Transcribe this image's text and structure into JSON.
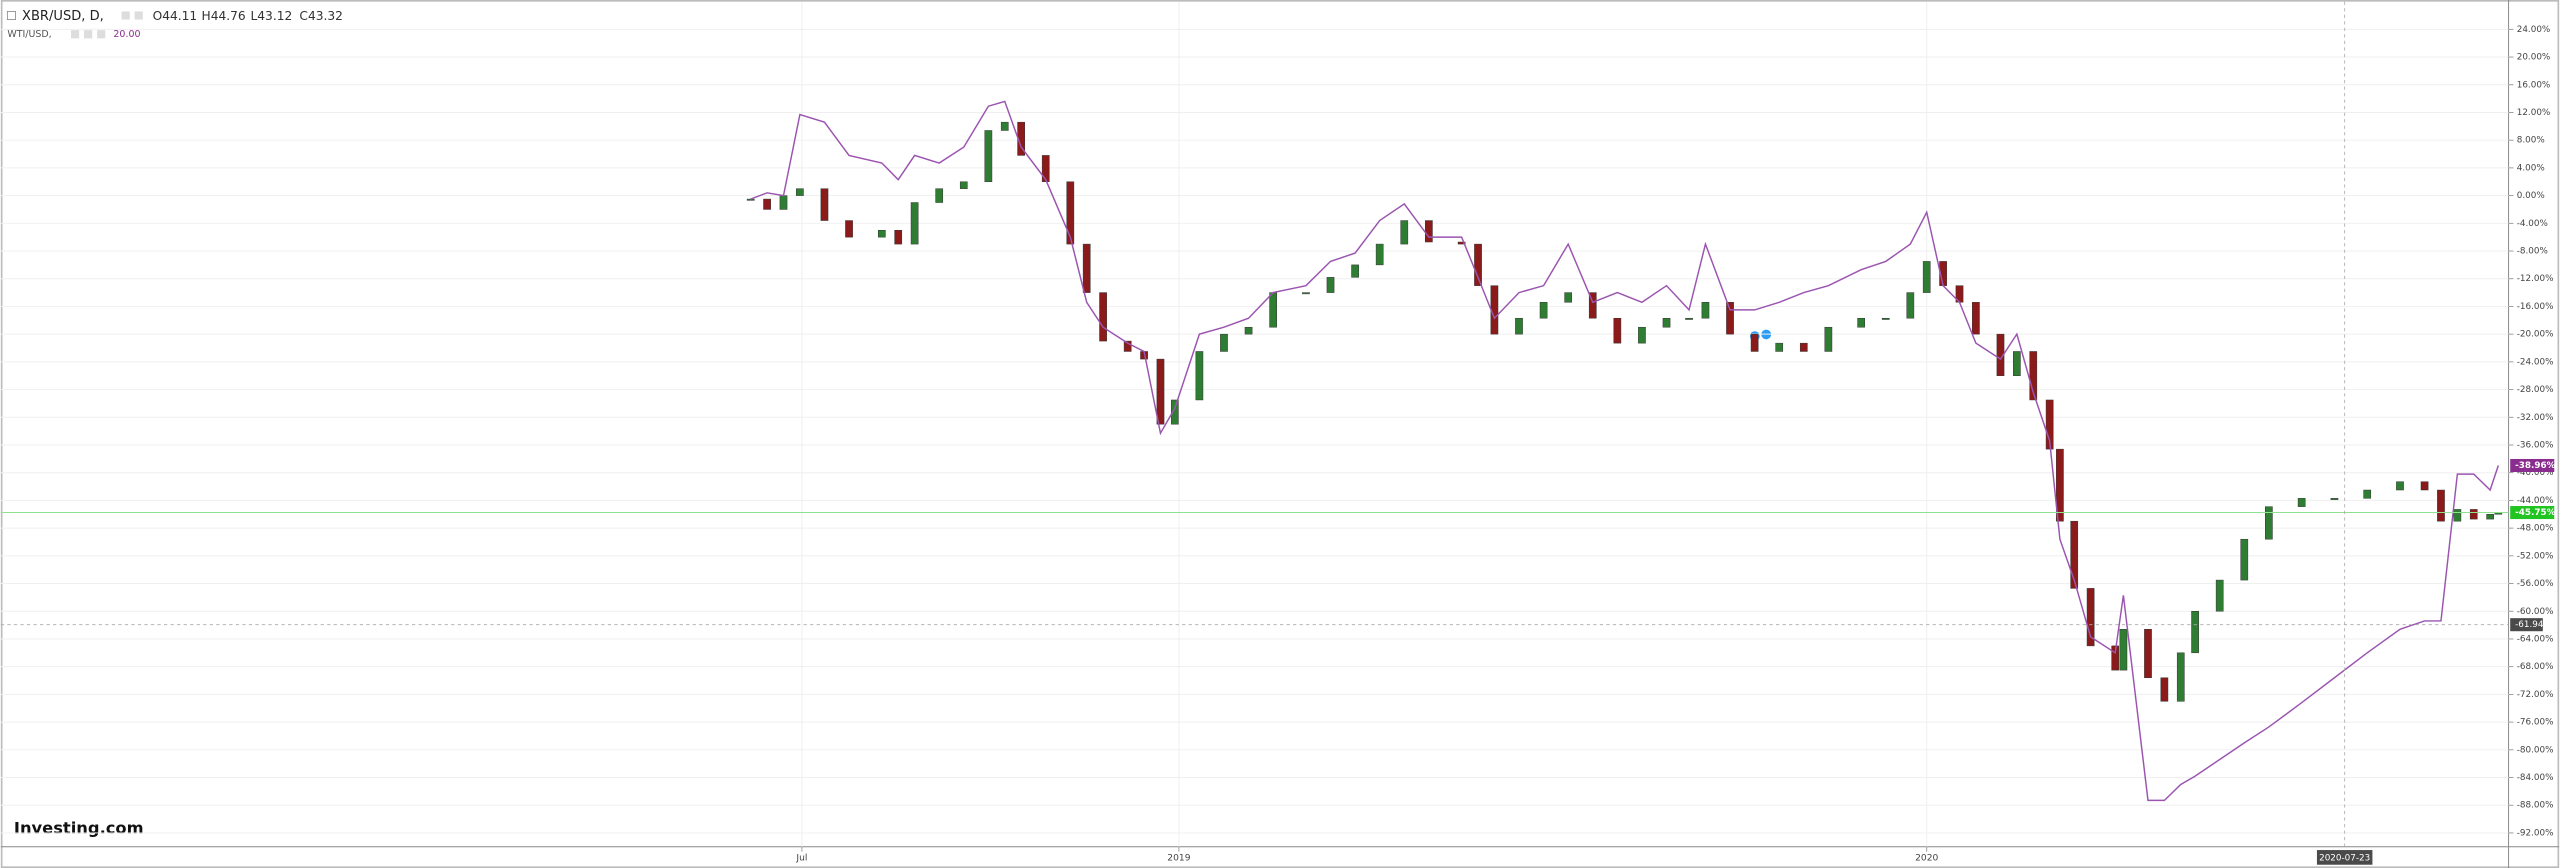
{
  "chart_data": {
    "type": "candlestick",
    "header": {
      "symbol": "XBR/USD, D,",
      "ohlc": [
        "O44.11",
        "H44.76",
        "L43.12",
        "C43.32"
      ],
      "compare_symbol": "WTI/USD,",
      "compare_value": "20.00"
    },
    "brand": "Investing.com",
    "x": [
      "2018-06-06",
      "2018-06-14",
      "2018-06-22",
      "2018-06-30",
      "2018-07-12",
      "2018-07-24",
      "2018-08-09",
      "2018-08-17",
      "2018-08-25",
      "2018-09-06",
      "2018-09-18",
      "2018-09-30",
      "2018-10-08",
      "2018-10-16",
      "2018-10-28",
      "2018-11-09",
      "2018-11-17",
      "2018-11-25",
      "2018-12-07",
      "2018-12-15",
      "2018-12-23",
      "2018-12-30",
      "2019-01-11",
      "2019-01-23",
      "2019-02-04",
      "2019-02-16",
      "2019-03-04",
      "2019-03-16",
      "2019-03-28",
      "2019-04-09",
      "2019-04-21",
      "2019-05-03",
      "2019-05-19",
      "2019-05-27",
      "2019-06-04",
      "2019-06-16",
      "2019-06-28",
      "2019-07-10",
      "2019-07-22",
      "2019-08-03",
      "2019-08-15",
      "2019-08-27",
      "2019-09-07",
      "2019-09-15",
      "2019-09-27",
      "2019-10-09",
      "2019-10-21",
      "2019-11-02",
      "2019-11-14",
      "2019-11-30",
      "2019-12-12",
      "2019-12-24",
      "2020-01-01",
      "2020-01-09",
      "2020-01-17",
      "2020-01-25",
      "2020-02-06",
      "2020-02-14",
      "2020-02-22",
      "2020-03-01",
      "2020-03-06",
      "2020-03-13",
      "2020-03-21",
      "2020-04-02",
      "2020-04-06",
      "2020-04-18",
      "2020-04-26",
      "2020-05-04",
      "2020-05-11",
      "2020-05-23",
      "2020-06-04",
      "2020-06-16",
      "2020-07-02",
      "2020-07-18",
      "2020-08-03",
      "2020-08-19",
      "2020-08-31",
      "2020-09-08",
      "2020-09-16",
      "2020-09-24",
      "2020-10-02",
      "2020-10-06"
    ],
    "series": [
      {
        "name": "XBR/USD",
        "kind": "candle",
        "up_color": "#2f7d32",
        "down_color": "#8b1a1a",
        "values": [
          -0.5,
          -2,
          0,
          1,
          -3.6,
          -6,
          -5,
          -7,
          -1,
          1,
          2,
          9.4,
          10.6,
          5.8,
          2,
          -7,
          -14,
          -21,
          -22.5,
          -23.6,
          -33,
          -29.5,
          -22.5,
          -20,
          -19,
          -14,
          -14,
          -11.8,
          -10,
          -7,
          -3.6,
          -6.7,
          -7,
          -13,
          -20,
          -17.7,
          -15.4,
          -14,
          -17.7,
          -21.3,
          -19,
          -17.7,
          -17.7,
          -15.4,
          -20,
          -22.5,
          -21.3,
          -22.5,
          -19,
          -17.7,
          -17.7,
          -14,
          -9.5,
          -13,
          -15.4,
          -20,
          -26,
          -22.5,
          -29.5,
          -36.6,
          -47,
          -56.7,
          -65,
          -68.5,
          -62.6,
          -69.6,
          -73,
          -66,
          -60,
          -55.5,
          -49.6,
          -44.9,
          -43.7,
          -43.7,
          -42.5,
          -41.3,
          -42.5,
          -47,
          -45.3,
          -46.7,
          -46,
          -45.75
        ]
      },
      {
        "name": "WTI/USD",
        "kind": "line",
        "color": "#9b55b0",
        "values": [
          -0.5,
          0.4,
          0,
          11.7,
          10.6,
          5.8,
          4.7,
          2.3,
          5.8,
          4.7,
          7,
          12.9,
          13.6,
          7,
          2.3,
          -6,
          -15.4,
          -19,
          -21.3,
          -22.5,
          -34.3,
          -30.7,
          -20,
          -19,
          -17.7,
          -14,
          -13,
          -9.5,
          -8.3,
          -3.6,
          -1.2,
          -6,
          -6,
          -11.8,
          -17.7,
          -14,
          -13,
          -7,
          -15.4,
          -14,
          -15.4,
          -13,
          -16.5,
          -7,
          -16.5,
          -16.5,
          -15.4,
          -14,
          -13,
          -10.7,
          -9.5,
          -7,
          -2.4,
          -13,
          -15.4,
          -21.3,
          -23.6,
          -20,
          -28.4,
          -35.4,
          -49.6,
          -55.5,
          -63.7,
          -66,
          -57.7,
          -87.3,
          -87.3,
          -85,
          -83.8,
          -81.4,
          -79,
          -76.7,
          -73.2,
          -69.6,
          -66,
          -62.6,
          -61.4,
          -61.4,
          -40.2,
          -40.2,
          -42.5,
          -38.96
        ]
      }
    ],
    "xlim": [
      "2017-06-05",
      "2020-10-11"
    ],
    "xticks": [
      {
        "value": "2018-07-01",
        "label": "Jul"
      },
      {
        "value": "2019-01-01",
        "label": "2019"
      },
      {
        "value": "2020-01-01",
        "label": "2020"
      }
    ],
    "ylim": [
      -94,
      28
    ],
    "yticks": [
      {
        "value": 24,
        "label": "24.00%"
      },
      {
        "value": 20,
        "label": "20.00%"
      },
      {
        "value": 16,
        "label": "16.00%"
      },
      {
        "value": 12,
        "label": "12.00%"
      },
      {
        "value": 8,
        "label": "8.00%"
      },
      {
        "value": 4,
        "label": "4.00%"
      },
      {
        "value": 0,
        "label": "0.00%"
      },
      {
        "value": -4,
        "label": "-4.00%"
      },
      {
        "value": -8,
        "label": "-8.00%"
      },
      {
        "value": -12,
        "label": "-12.00%"
      },
      {
        "value": -16,
        "label": "-16.00%"
      },
      {
        "value": -20,
        "label": "-20.00%"
      },
      {
        "value": -24,
        "label": "-24.00%"
      },
      {
        "value": -28,
        "label": "-28.00%"
      },
      {
        "value": -32,
        "label": "-32.00%"
      },
      {
        "value": -36,
        "label": "-36.00%"
      },
      {
        "value": -40,
        "label": "-40.00%"
      },
      {
        "value": -44,
        "label": "-44.00%"
      },
      {
        "value": -48,
        "label": "-48.00%"
      },
      {
        "value": -52,
        "label": "-52.00%"
      },
      {
        "value": -56,
        "label": "-56.00%"
      },
      {
        "value": -60,
        "label": "-60.00%"
      },
      {
        "value": -64,
        "label": "-64.00%"
      },
      {
        "value": -68,
        "label": "-68.00%"
      },
      {
        "value": -72,
        "label": "-72.00%"
      },
      {
        "value": -76,
        "label": "-76.00%"
      },
      {
        "value": -80,
        "label": "-80.00%"
      },
      {
        "value": -84,
        "label": "-84.00%"
      },
      {
        "value": -88,
        "label": "-88.00%"
      },
      {
        "value": -92,
        "label": "-92.00%"
      }
    ],
    "grid": true,
    "last_price_tags": [
      {
        "value": -38.96,
        "label": "-38.96%",
        "color": "#8a2d8f"
      },
      {
        "value": -45.75,
        "label": "-45.75%",
        "color": "#22c422"
      }
    ],
    "crosshair": {
      "x": "2020-07-23",
      "y": {
        "value": -61.94,
        "label": "-61.94"
      }
    }
  }
}
